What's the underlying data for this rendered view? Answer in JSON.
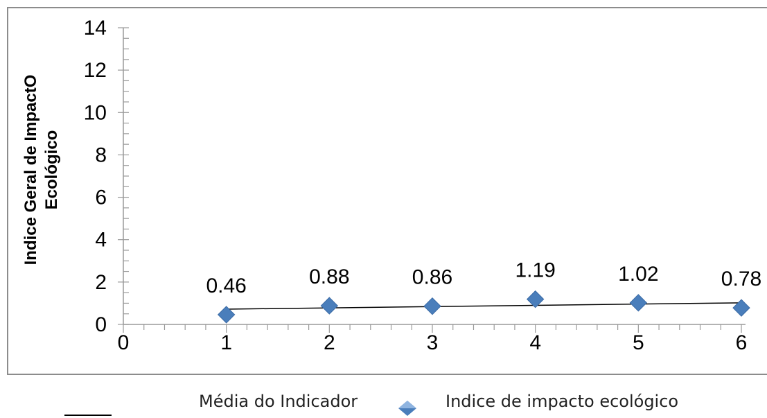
{
  "chart_data": {
    "type": "scatter",
    "ylabel_lines": [
      "Indice Geral de ImpactO",
      "Ecológico"
    ],
    "x": [
      1,
      2,
      3,
      4,
      5,
      6
    ],
    "series": [
      {
        "name": "Indice de impacto ecológico",
        "values": [
          0.46,
          0.88,
          0.86,
          1.19,
          1.02,
          0.78
        ],
        "marker": "diamond",
        "color": "#4a7ebb"
      },
      {
        "name": "Média do Indicador",
        "type": "line",
        "start": [
          1,
          0.72
        ],
        "end": [
          6,
          1.02
        ],
        "color": "#000000"
      }
    ],
    "data_labels": [
      "0.46",
      "0.88",
      "0.86",
      "1.19",
      "1.02",
      "0.78"
    ],
    "xlim": [
      0,
      6
    ],
    "ylim": [
      0,
      14
    ],
    "x_ticks": [
      "0",
      "1",
      "2",
      "3",
      "4",
      "5",
      "6"
    ],
    "y_ticks": [
      "0",
      "2",
      "4",
      "6",
      "8",
      "10",
      "12",
      "14"
    ],
    "grid": false,
    "legend_position": "bottom"
  },
  "legend": {
    "line_label": "Média do Indicador",
    "marker_label": "Indice de impacto ecológico"
  }
}
